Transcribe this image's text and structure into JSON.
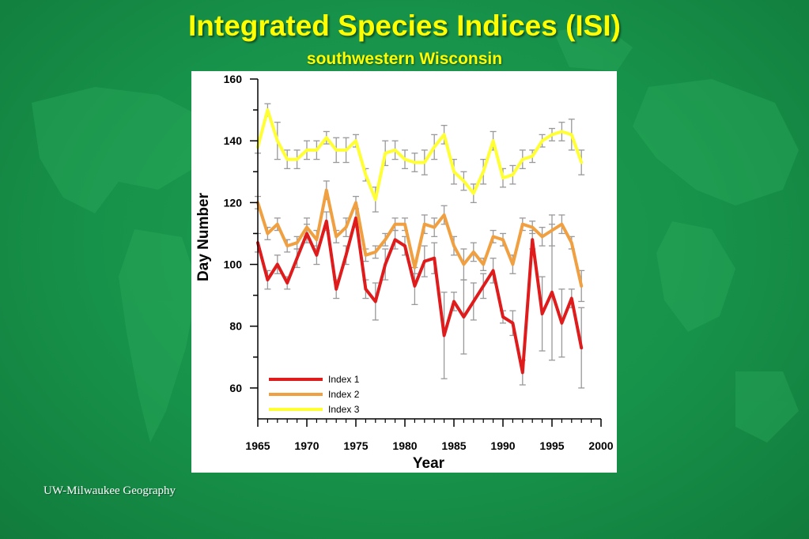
{
  "slide": {
    "title": "Integrated Species Indices (ISI)",
    "subtitle": "southwestern Wisconsin",
    "footer": "UW-Milwaukee Geography",
    "background_color": "#17924a",
    "title_color": "#ffff00"
  },
  "chart_data": {
    "type": "line",
    "xlabel": "Year",
    "ylabel": "Day Number",
    "xlim": [
      1965,
      2000
    ],
    "ylim": [
      50,
      160
    ],
    "xticks": [
      1965,
      1970,
      1975,
      1980,
      1985,
      1990,
      1995,
      2000
    ],
    "yticks": [
      60,
      80,
      100,
      120,
      140,
      160
    ],
    "grid": false,
    "legend_position": "bottom-left",
    "x": [
      1965,
      1966,
      1967,
      1968,
      1969,
      1970,
      1971,
      1972,
      1973,
      1974,
      1975,
      1976,
      1977,
      1978,
      1979,
      1980,
      1981,
      1982,
      1983,
      1984,
      1985,
      1986,
      1987,
      1988,
      1989,
      1990,
      1991,
      1992,
      1993,
      1994,
      1995,
      1996,
      1997,
      1998
    ],
    "series": [
      {
        "name": "Index 1",
        "color": "#e01b1b",
        "values": [
          107,
          95,
          100,
          94,
          102,
          110,
          103,
          114,
          92,
          103,
          115,
          92,
          88,
          100,
          108,
          106,
          93,
          101,
          102,
          77,
          88,
          83,
          88,
          93,
          98,
          83,
          81,
          65,
          108,
          84,
          91,
          81,
          89,
          73
        ],
        "error": [
          3,
          3,
          3,
          2,
          3,
          3,
          3,
          3,
          3,
          3,
          3,
          3,
          6,
          5,
          3,
          3,
          6,
          5,
          5,
          14,
          3,
          12,
          6,
          4,
          4,
          2,
          4,
          4,
          3,
          12,
          22,
          11,
          3,
          13
        ]
      },
      {
        "name": "Index 2",
        "color": "#f0a040",
        "values": [
          120,
          110,
          113,
          106,
          107,
          112,
          108,
          124,
          109,
          112,
          120,
          103,
          104,
          108,
          113,
          113,
          99,
          113,
          112,
          116,
          106,
          100,
          104,
          100,
          109,
          108,
          100,
          113,
          112,
          109,
          111,
          113,
          107,
          93
        ],
        "error": [
          2,
          2,
          2,
          2,
          2,
          3,
          3,
          3,
          2,
          3,
          2,
          2,
          2,
          2,
          2,
          2,
          2,
          3,
          3,
          3,
          3,
          5,
          3,
          2,
          2,
          2,
          3,
          2,
          2,
          3,
          5,
          3,
          2,
          5
        ]
      },
      {
        "name": "Index 3",
        "color": "#ffff33",
        "values": [
          138,
          150,
          140,
          134,
          134,
          137,
          137,
          141,
          137,
          137,
          140,
          129,
          121,
          136,
          137,
          134,
          133,
          133,
          138,
          142,
          130,
          127,
          123,
          130,
          140,
          128,
          129,
          134,
          135,
          140,
          142,
          143,
          142,
          133
        ],
        "error": [
          2,
          2,
          6,
          3,
          3,
          3,
          3,
          2,
          4,
          4,
          2,
          2,
          4,
          4,
          3,
          3,
          3,
          4,
          4,
          3,
          4,
          3,
          3,
          4,
          3,
          3,
          3,
          3,
          2,
          2,
          2,
          3,
          5,
          4
        ]
      }
    ]
  }
}
